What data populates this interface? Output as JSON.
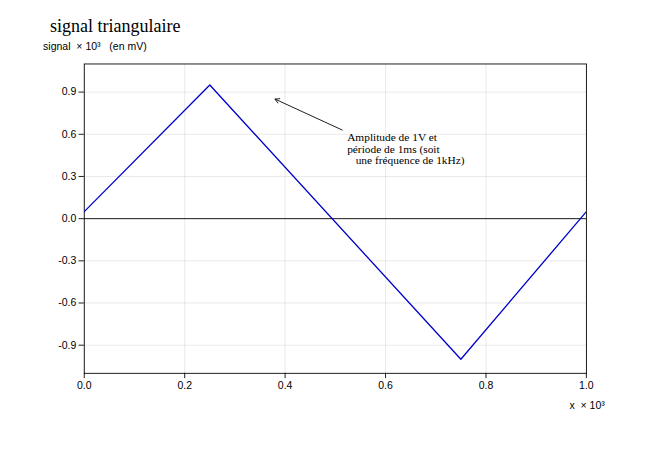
{
  "chart_data": {
    "type": "line",
    "title": "signal triangulaire",
    "xlabel": "x  × 10³",
    "ylabel": "signal  × 10³   (en mV)",
    "x": [
      0.0,
      0.25,
      0.75,
      1.0
    ],
    "values": [
      0.05,
      0.95,
      -1.0,
      0.05
    ],
    "color": "#0000cc",
    "xlim": [
      0.0,
      1.0
    ],
    "ylim": [
      -1.1,
      1.1
    ],
    "xticks": [
      {
        "value": 0.0,
        "label": "0.0"
      },
      0.2,
      0.4,
      0.6,
      0.8,
      {
        "value": 1.0,
        "label": "1.0"
      }
    ],
    "yticks": [
      -0.9,
      -0.6,
      -0.3,
      {
        "value": 0.0,
        "label": "0.0"
      },
      0.3,
      0.6,
      0.9
    ],
    "grid": true,
    "annotations": [
      {
        "text": "Amplitude de 1V et\npériode de 1ms (soit\n   une fréquence de 1kHz)",
        "x": 0.52,
        "y": 0.62,
        "arrow_x": 0.38,
        "arrow_y": 0.85
      }
    ]
  }
}
